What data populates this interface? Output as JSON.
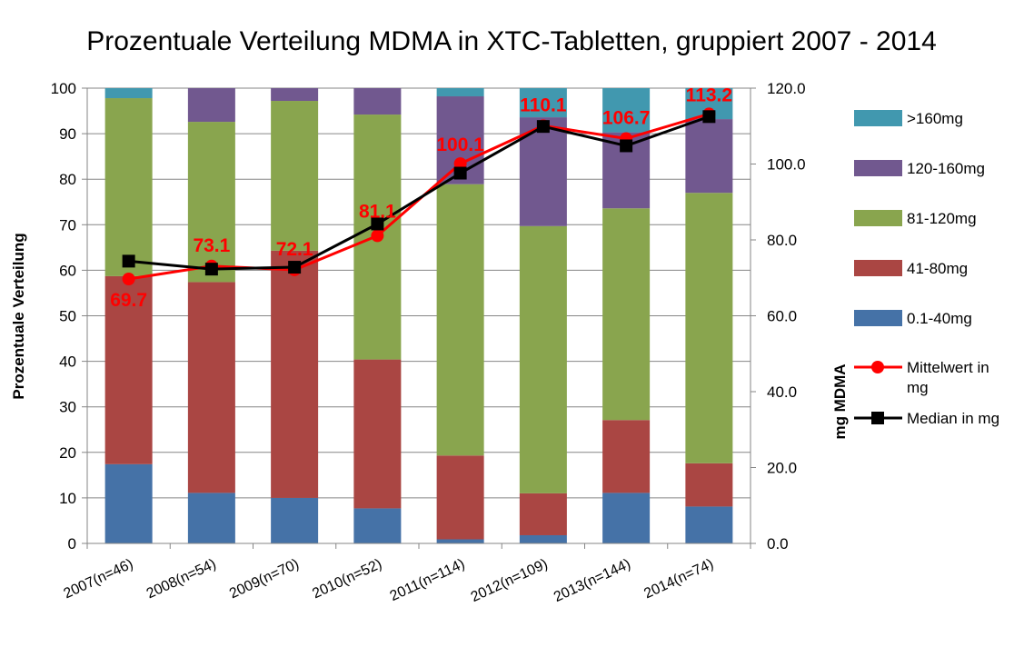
{
  "chart_data": {
    "type": "bar",
    "stacked": true,
    "title": "Prozentuale Verteilung MDMA in XTC-Tabletten, gruppiert 2007 - 2014",
    "ylabel": "Prozentuale Verteilung",
    "y2label": "mg MDMA",
    "ylim": [
      0,
      100
    ],
    "y2lim": [
      0,
      120
    ],
    "yticks": [
      "0",
      "10",
      "20",
      "30",
      "40",
      "50",
      "60",
      "70",
      "80",
      "90",
      "100"
    ],
    "y2ticks": [
      "0.0",
      "20.0",
      "40.0",
      "60.0",
      "80.0",
      "100.0",
      "120.0"
    ],
    "grid": true,
    "legend_position": "right",
    "categories": [
      "2007(n=46)",
      "2008(n=54)",
      "2009(n=70)",
      "2010(n=52)",
      "2011(n=114)",
      "2012(n=109)",
      "2013(n=144)",
      "2014(n=74)"
    ],
    "series": [
      {
        "name": "0.1-40mg",
        "color": "#4572A7",
        "values": [
          17.4,
          11.1,
          10.0,
          7.7,
          0.9,
          1.8,
          11.1,
          8.1
        ]
      },
      {
        "name": "41-80mg",
        "color": "#AA4643",
        "values": [
          41.3,
          46.3,
          54.3,
          32.7,
          18.4,
          9.2,
          16.0,
          9.5
        ]
      },
      {
        "name": "81-120mg",
        "color": "#89A54E",
        "values": [
          39.1,
          35.2,
          32.9,
          53.8,
          59.6,
          58.7,
          46.5,
          59.4
        ]
      },
      {
        "name": "120-160mg",
        "color": "#71588F",
        "values": [
          0.0,
          7.4,
          2.8,
          5.8,
          19.3,
          23.9,
          16.7,
          16.2
        ]
      },
      {
        "name": ">160mg",
        "color": "#4198AF",
        "values": [
          2.2,
          0.0,
          0.0,
          0.0,
          1.8,
          6.4,
          9.7,
          6.8
        ]
      }
    ],
    "lines": [
      {
        "name": "Mittelwert in mg",
        "color": "#FF0000",
        "marker": "circle",
        "axis": "right",
        "values": [
          69.7,
          73.1,
          72.1,
          81.1,
          100.1,
          110.1,
          106.7,
          113.2
        ],
        "labels": [
          "69.7",
          "73.1",
          "72.1",
          "81.1",
          "100.1",
          "110.1",
          "106.7",
          "113.2"
        ]
      },
      {
        "name": "Median in  mg",
        "color": "#000000",
        "marker": "square",
        "axis": "right",
        "values": [
          74.4,
          72.3,
          72.8,
          84.2,
          97.6,
          109.9,
          104.8,
          112.5
        ]
      }
    ]
  }
}
